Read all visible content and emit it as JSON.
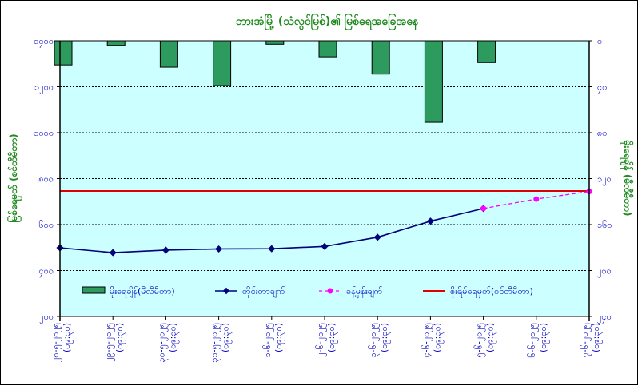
{
  "chart_data": {
    "type": "line",
    "title": "ဘားအံမြို့ (သံလွင်မြစ်)၏ မြစ်ရေအခြေအနေ",
    "ylabel_left": "မြစ်ရေမှတ် (စင်တီမီတာ)",
    "ylabel_right": "မိုးရေချိန် (မီလီမီတာ)",
    "categories": [
      "၂၈-၅-၂၀၂၅ (၀၉:၃၀)",
      "၂၉-၅-၂၀၂၅ (၀၉:၃၀)",
      "၃၀-၅-၂၀၂၅ (၀၉:၃၀)",
      "၃၁-၅-၂၀၂၅ (၀၉:၃၀)",
      "၁-၆-၂၀၂၅ (၀၉:၃၀)",
      "၂-၆-၂၀၂၅ (၀၉:၃၀)",
      "၃-၆-၂၀၂၅ (၀၉:၃၀)",
      "၄-၆-၂၀၂၅ (၀၉:၃၀)",
      "၅-၆-၂၀၂၅ (၀၉:၃၀)",
      "၆-၆-၂၀၂၅ (၀၉:၃၀)",
      "၇-၆-၂၀၂၅ (၀၉:၃၀)"
    ],
    "left_axis": {
      "range": [
        200,
        1400
      ],
      "ticks": [
        200,
        400,
        600,
        800,
        1000,
        1200,
        1400
      ],
      "tick_labels": [
        "၂၀၀",
        "၄၀၀",
        "၆၀၀",
        "၈၀၀",
        "၁၀၀၀",
        "၁၂၀၀",
        "၁၄၀၀"
      ]
    },
    "right_axis": {
      "range": [
        0,
        240
      ],
      "inverted": true,
      "ticks": [
        0,
        40,
        80,
        120,
        160,
        200,
        240
      ],
      "tick_labels": [
        "၀",
        "၄၀",
        "၈၀",
        "၁၂၀",
        "၁၆၀",
        "၂၀၀",
        "၂၄၀"
      ]
    },
    "grid": true,
    "legend_position": "lower-center",
    "series": [
      {
        "name": "မိုးရေချိန်(မီလီမီတာ)",
        "type": "bar",
        "axis": "right",
        "color": "#2e9b5e",
        "values": [
          21,
          4,
          23,
          39,
          3,
          14,
          29,
          71,
          19,
          null,
          null
        ]
      },
      {
        "name": "တိုင်းတာချက်",
        "type": "line",
        "axis": "left",
        "color": "#00007a",
        "values": [
          499,
          478,
          489,
          494,
          495,
          505,
          545,
          615,
          670,
          null,
          null
        ]
      },
      {
        "name": "ခန့်မှန်းချက်",
        "type": "line-dashed",
        "axis": "left",
        "color": "#ff00ff",
        "values": [
          null,
          null,
          null,
          null,
          null,
          null,
          null,
          null,
          670,
          711,
          744
        ]
      },
      {
        "name": "စိုးရိမ်ရေမှတ်(စင်တီမီတာ)",
        "type": "hline",
        "axis": "left",
        "color": "#e00000",
        "value": 746
      }
    ]
  }
}
